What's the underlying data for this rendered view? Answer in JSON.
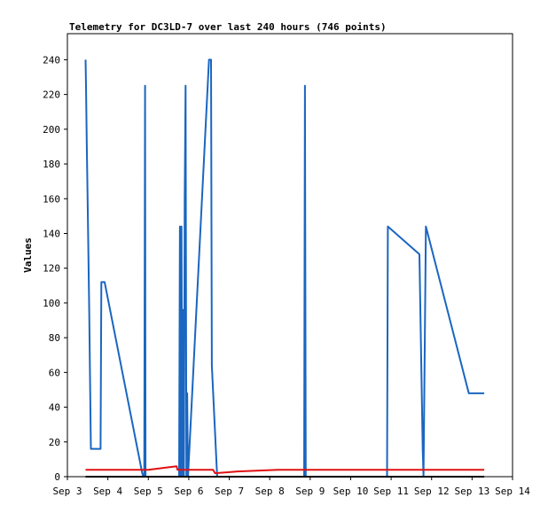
{
  "chart_data": {
    "type": "line",
    "title": "Telemetry for DC3LD-7 over last 240 hours (746 points)",
    "xlabel": "",
    "ylabel": "Values",
    "x_ticks": [
      "Sep 3",
      "Sep 4",
      "Sep 5",
      "Sep 6",
      "Sep 7",
      "Sep 8",
      "Sep 9",
      "Sep 10",
      "Sep 11",
      "Sep 12",
      "Sep 13",
      "Sep 14"
    ],
    "y_ticks": [
      0,
      20,
      40,
      60,
      80,
      100,
      120,
      140,
      160,
      180,
      200,
      220,
      240
    ],
    "xlim": [
      3.0,
      14.0
    ],
    "ylim": [
      0,
      255
    ],
    "grid": false,
    "series": [
      {
        "color": "#1a66c0",
        "points": [
          [
            3.45,
            240
          ],
          [
            3.46,
            225
          ],
          [
            3.48,
            190
          ],
          [
            3.5,
            160
          ],
          [
            3.52,
            128
          ],
          [
            3.54,
            96
          ],
          [
            3.58,
            16
          ],
          [
            3.82,
            16
          ],
          [
            3.84,
            112
          ],
          [
            3.92,
            112
          ],
          [
            4.85,
            2
          ],
          [
            4.88,
            0
          ],
          [
            4.9,
            0
          ],
          [
            4.92,
            225
          ],
          [
            4.93,
            0
          ],
          [
            5.76,
            0
          ],
          [
            5.78,
            144
          ],
          [
            5.8,
            0
          ],
          [
            5.82,
            144
          ],
          [
            5.84,
            0
          ],
          [
            5.86,
            96
          ],
          [
            5.88,
            0
          ],
          [
            5.9,
            160
          ],
          [
            5.92,
            225
          ],
          [
            5.94,
            0
          ],
          [
            5.96,
            48
          ],
          [
            5.98,
            0
          ],
          [
            6.5,
            240
          ],
          [
            6.55,
            240
          ],
          [
            6.57,
            64
          ],
          [
            6.7,
            0
          ],
          [
            6.72,
            0
          ],
          [
            8.85,
            0
          ],
          [
            8.87,
            225
          ],
          [
            8.89,
            0
          ],
          [
            10.9,
            0
          ],
          [
            10.92,
            144
          ],
          [
            11.7,
            128
          ],
          [
            11.78,
            16
          ],
          [
            11.8,
            0
          ],
          [
            11.86,
            144
          ],
          [
            12.92,
            48
          ],
          [
            13.3,
            48
          ]
        ]
      },
      {
        "color": "#e01010",
        "points": [
          [
            3.45,
            4
          ],
          [
            5.0,
            4
          ],
          [
            5.7,
            6
          ],
          [
            5.72,
            4
          ],
          [
            6.6,
            4
          ],
          [
            6.65,
            2
          ],
          [
            7.2,
            3
          ],
          [
            8.2,
            4
          ],
          [
            13.3,
            4
          ]
        ]
      },
      {
        "color": "#000000",
        "points": [
          [
            3.45,
            0
          ],
          [
            13.3,
            0
          ]
        ]
      }
    ]
  }
}
